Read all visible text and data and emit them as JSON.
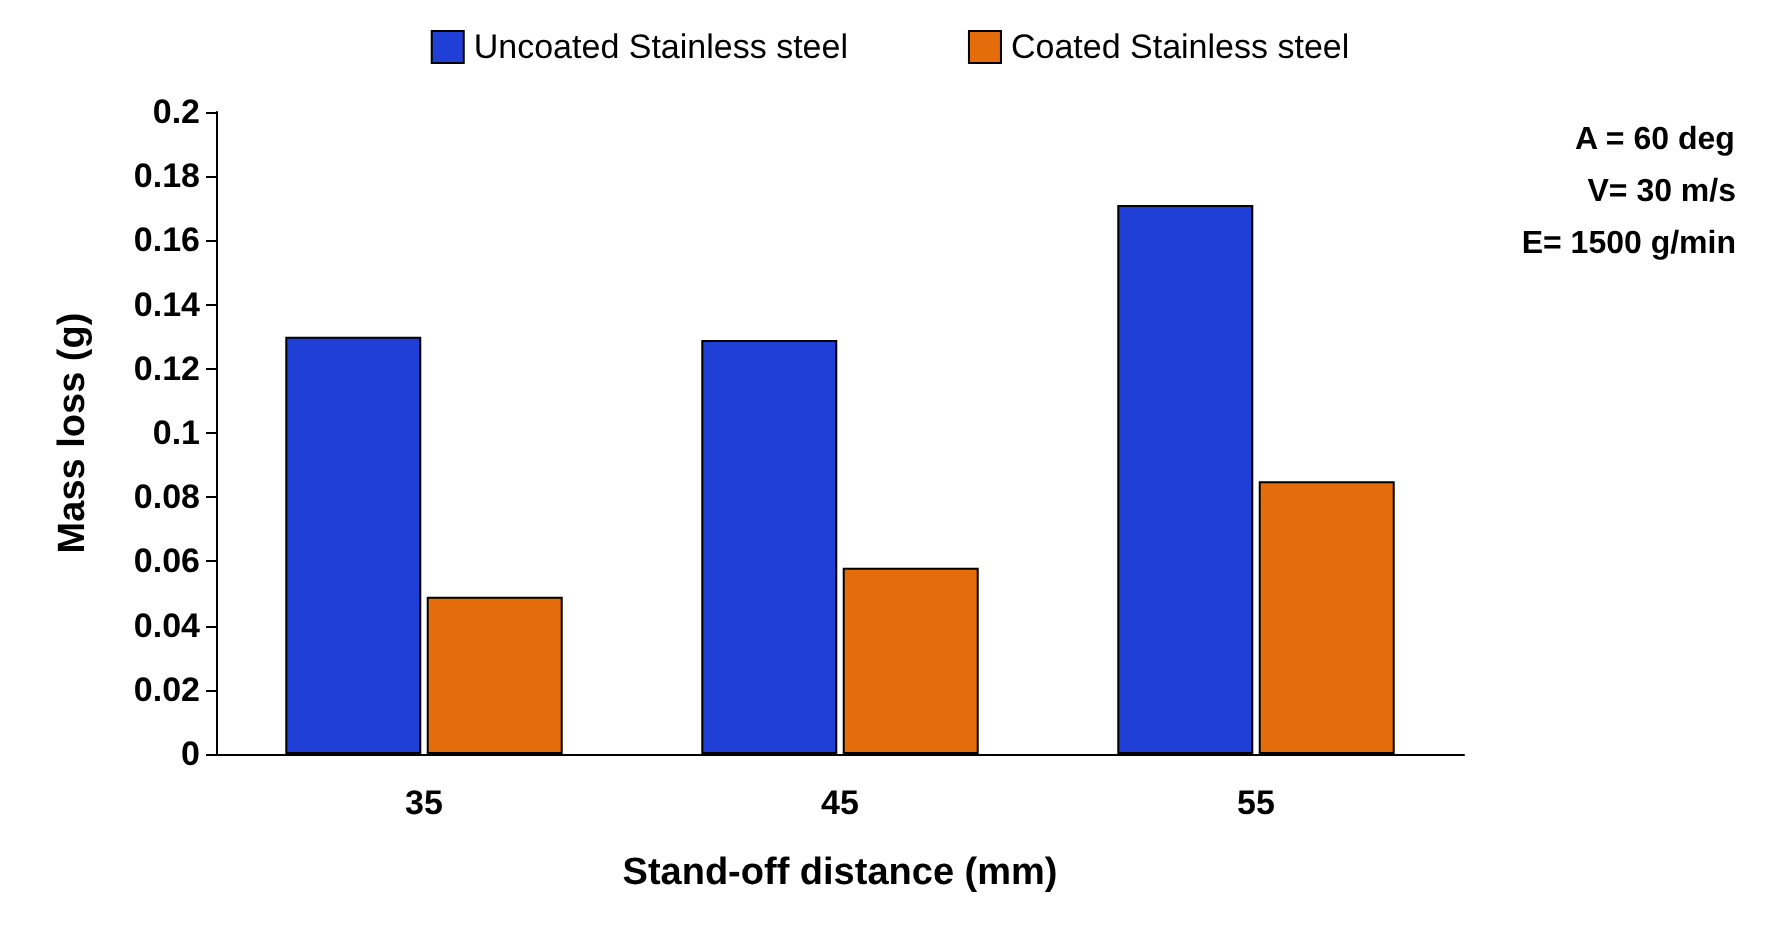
{
  "chart_data": {
    "type": "bar",
    "xlabel": "Stand-off distance (mm)",
    "ylabel": "Mass loss (g)",
    "categories": [
      "35",
      "45",
      "55"
    ],
    "series": [
      {
        "name": "Uncoated Stainless steel",
        "color": "#1f3fd6",
        "values": [
          0.13,
          0.129,
          0.171
        ]
      },
      {
        "name": "Coated Stainless steel",
        "color": "#e46c0a",
        "values": [
          0.049,
          0.058,
          0.085
        ]
      }
    ],
    "ylim": [
      0,
      0.2
    ],
    "yticks": [
      0,
      0.02,
      0.04,
      0.06,
      0.08,
      0.1,
      0.12,
      0.14,
      0.16,
      0.18,
      0.2
    ],
    "grid": false,
    "legend": "top",
    "annotations": [
      "A = 60 deg",
      "V= 30 m/s",
      "E= 1500 g/min"
    ]
  }
}
